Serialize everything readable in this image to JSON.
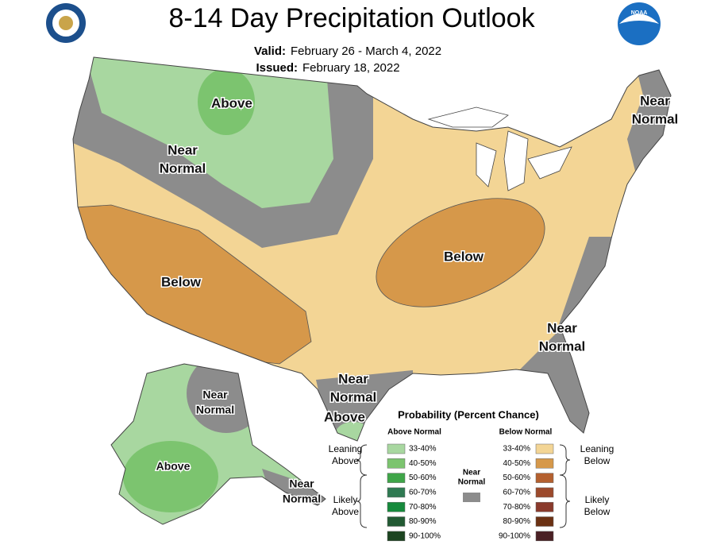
{
  "header": {
    "title": "8-14 Day Precipitation Outlook",
    "valid_label": "Valid:",
    "valid": "February 26 - March 4, 2022",
    "issued_label": "Issued:",
    "issued": "February 18, 2022"
  },
  "map_labels": [
    {
      "lines": [
        "Above"
      ]
    },
    {
      "lines": [
        "Near",
        "Normal"
      ]
    },
    {
      "lines": [
        "Below"
      ]
    },
    {
      "lines": [
        "Below"
      ]
    },
    {
      "lines": [
        "Near",
        "Normal"
      ]
    },
    {
      "lines": [
        "Near",
        "Normal"
      ]
    },
    {
      "lines": [
        "Near",
        "Normal"
      ]
    },
    {
      "lines": [
        "Above"
      ]
    },
    {
      "lines": [
        "Near",
        "Normal"
      ]
    },
    {
      "lines": [
        "Above"
      ]
    },
    {
      "lines": [
        "Near",
        "Normal"
      ]
    }
  ],
  "legend": {
    "title": "Probability (Percent Chance)",
    "above_heading": "Above Normal",
    "below_heading": "Below Normal",
    "above": [
      {
        "range": "33-40%",
        "color": "#a8d7a0"
      },
      {
        "range": "40-50%",
        "color": "#7cc46f"
      },
      {
        "range": "50-60%",
        "color": "#3fa548"
      },
      {
        "range": "60-70%",
        "color": "#2f7a52"
      },
      {
        "range": "70-80%",
        "color": "#168a3c"
      },
      {
        "range": "80-90%",
        "color": "#225a33"
      },
      {
        "range": "90-100%",
        "color": "#1c4420"
      }
    ],
    "below": [
      {
        "range": "33-40%",
        "color": "#f3d595"
      },
      {
        "range": "40-50%",
        "color": "#d6984a"
      },
      {
        "range": "50-60%",
        "color": "#b4602f"
      },
      {
        "range": "60-70%",
        "color": "#9c4a2c"
      },
      {
        "range": "70-80%",
        "color": "#8a3a2c"
      },
      {
        "range": "80-90%",
        "color": "#6b3113"
      },
      {
        "range": "90-100%",
        "color": "#4a2024"
      }
    ],
    "near_normal": {
      "lines": [
        "Near",
        "Normal"
      ],
      "color": "#8c8c8c"
    },
    "groups": [
      {
        "lines": [
          "Leaning",
          "Above"
        ]
      },
      {
        "lines": [
          "Likely",
          "Above"
        ]
      },
      {
        "lines": [
          "Leaning",
          "Below"
        ]
      },
      {
        "lines": [
          "Likely",
          "Below"
        ]
      }
    ]
  }
}
